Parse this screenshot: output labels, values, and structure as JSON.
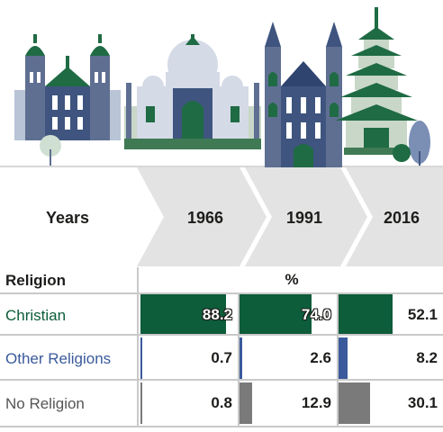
{
  "header": {
    "years_label": "Years",
    "years": [
      "1966",
      "1991",
      "2016"
    ]
  },
  "table": {
    "religion_header": "Religion",
    "unit_header": "%"
  },
  "colors": {
    "christian": "#0d5c3a",
    "other_religions": "#3a5a9c",
    "no_religion": "#7a7a7a",
    "christian_label": "#0d5c3a",
    "other_label": "#3a5a9c",
    "no_label": "#555555"
  },
  "icons": [
    "mosque-icon",
    "temple-dome-icon",
    "cathedral-icon",
    "pagoda-icon",
    "tree-icon"
  ],
  "chart_data": {
    "type": "table",
    "categories": [
      "1966",
      "1991",
      "2016"
    ],
    "unit": "%",
    "series": [
      {
        "name": "Christian",
        "values": [
          88.2,
          74.0,
          52.1
        ],
        "display": [
          "88.2",
          "74.0",
          "52.1"
        ]
      },
      {
        "name": "Other Religions",
        "values": [
          0.7,
          2.6,
          8.2
        ],
        "display": [
          "0.7",
          "2.6",
          "8.2"
        ]
      },
      {
        "name": "No Religion",
        "values": [
          0.8,
          12.9,
          30.1
        ],
        "display": [
          "0.8",
          "12.9",
          "30.1"
        ]
      }
    ]
  }
}
